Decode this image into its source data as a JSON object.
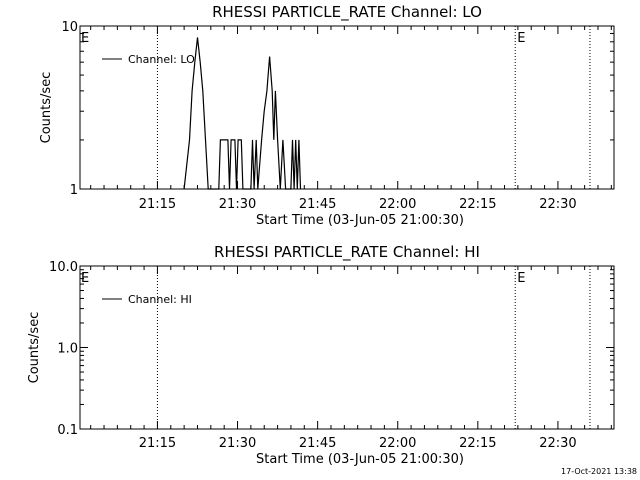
{
  "timestamp": "17-Oct-2021 13:38",
  "chart_data": [
    {
      "type": "line",
      "title": "RHESSI PARTICLE_RATE Channel: LO",
      "xlabel": "Start Time (03-Jun-05 21:00:30)",
      "ylabel": "Counts/sec",
      "x_ticks": [
        "21:15",
        "21:30",
        "21:45",
        "22:00",
        "22:15",
        "22:30"
      ],
      "x_tick_minutes": [
        14.5,
        29.5,
        44.5,
        59.5,
        74.5,
        89.5
      ],
      "xlim_minutes": [
        0,
        100
      ],
      "y_scale": "log",
      "ylim": [
        1,
        10
      ],
      "y_ticks": [
        "10",
        "1"
      ],
      "y_tick_values": [
        10,
        1
      ],
      "grid": false,
      "legend": {
        "position": "top-left",
        "entries": [
          "Channel: LO"
        ]
      },
      "vertical_markers": [
        {
          "minute": 14.5,
          "label": "",
          "style": "dotted"
        },
        {
          "minute": 81.5,
          "label": "E",
          "style": "dotted"
        },
        {
          "minute": 95.5,
          "label": "",
          "style": "dotted"
        }
      ],
      "edge_label_left": "E",
      "series": [
        {
          "name": "Channel: LO",
          "points": [
            [
              19.5,
              1
            ],
            [
              20.5,
              2
            ],
            [
              21,
              4
            ],
            [
              21.5,
              6
            ],
            [
              22,
              8.5
            ],
            [
              22.5,
              6
            ],
            [
              23,
              4
            ],
            [
              23.5,
              2
            ],
            [
              24,
              1
            ],
            [
              26,
              1
            ],
            [
              26.3,
              2
            ],
            [
              27.7,
              2
            ],
            [
              28,
              1
            ],
            [
              28.3,
              2
            ],
            [
              29,
              2
            ],
            [
              29.3,
              1
            ],
            [
              29.6,
              2
            ],
            [
              30.2,
              2
            ],
            [
              30.5,
              1
            ],
            [
              32,
              1
            ],
            [
              32.3,
              2
            ],
            [
              32.6,
              1
            ],
            [
              33,
              2
            ],
            [
              33.3,
              1
            ],
            [
              34,
              2
            ],
            [
              34.5,
              3
            ],
            [
              35,
              4
            ],
            [
              35.5,
              6.5
            ],
            [
              36,
              4
            ],
            [
              36.3,
              2
            ],
            [
              36.6,
              4
            ],
            [
              37,
              2
            ],
            [
              37.5,
              1
            ],
            [
              38,
              2
            ],
            [
              38.5,
              1
            ],
            [
              39.5,
              1
            ],
            [
              39.8,
              2
            ],
            [
              40.1,
              1
            ],
            [
              40.4,
              2
            ],
            [
              40.7,
              1
            ],
            [
              41,
              2
            ],
            [
              41.3,
              1
            ]
          ]
        }
      ]
    },
    {
      "type": "line",
      "title": "RHESSI PARTICLE_RATE Channel: HI",
      "xlabel": "Start Time (03-Jun-05 21:00:30)",
      "ylabel": "Counts/sec",
      "x_ticks": [
        "21:15",
        "21:30",
        "21:45",
        "22:00",
        "22:15",
        "22:30"
      ],
      "x_tick_minutes": [
        14.5,
        29.5,
        44.5,
        59.5,
        74.5,
        89.5
      ],
      "xlim_minutes": [
        0,
        100
      ],
      "y_scale": "log",
      "ylim": [
        0.1,
        10
      ],
      "y_ticks": [
        "10.0",
        "1.0",
        "0.1"
      ],
      "y_tick_values": [
        10,
        1,
        0.1
      ],
      "grid": false,
      "legend": {
        "position": "top-left",
        "entries": [
          "Channel: HI"
        ]
      },
      "vertical_markers": [
        {
          "minute": 14.5,
          "label": "",
          "style": "dotted"
        },
        {
          "minute": 81.5,
          "label": "E",
          "style": "dotted"
        },
        {
          "minute": 95.5,
          "label": "",
          "style": "dotted"
        }
      ],
      "edge_label_left": "E",
      "series": [
        {
          "name": "Channel: HI",
          "points": []
        }
      ]
    }
  ]
}
